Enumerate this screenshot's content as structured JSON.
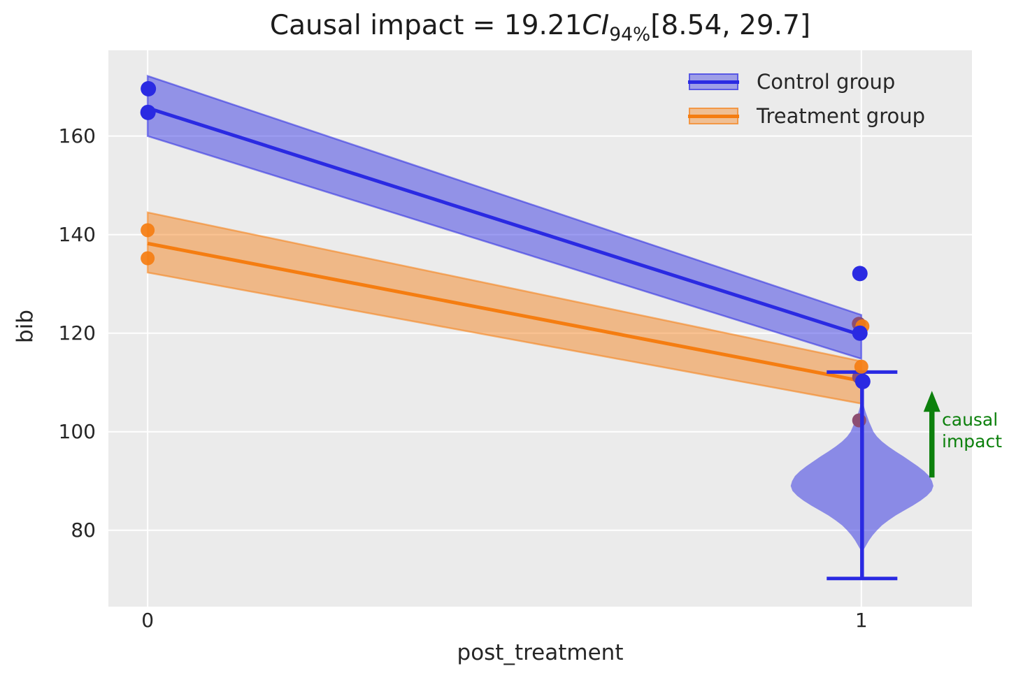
{
  "figure": {
    "title": {
      "prefix": "Causal impact = 19.21",
      "ci": "CI",
      "ci_sub": "94%",
      "suffix": "[8.54, 29.7]"
    },
    "xlabel": "post_treatment",
    "ylabel": "bib"
  },
  "legend": [
    {
      "label": "Control group",
      "color": "#2a2ae2"
    },
    {
      "label": "Treatment group",
      "color": "#f57d11"
    }
  ],
  "annotation": {
    "text": "causal\nimpact",
    "color": "#0c800c"
  },
  "colors": {
    "plot_bg": "#ebebeb",
    "grid": "#ffffff",
    "control": "#2a2ae2",
    "treatment": "#f57d11",
    "overlap_dot": "#8d4e72",
    "green": "#0c800c",
    "text": "#262626"
  },
  "chart_data": {
    "type": "line",
    "title": "Causal impact = 19.21 CI_94% [8.54, 29.7]",
    "causal_impact": {
      "estimate": 19.21,
      "ci_level": "94%",
      "ci_lower": 8.54,
      "ci_upper": 29.7
    },
    "xlabel": "post_treatment",
    "ylabel": "bib",
    "x": [
      0,
      1
    ],
    "xticks": [
      0,
      1
    ],
    "yticks": [
      80,
      100,
      120,
      140,
      160
    ],
    "axes": {
      "xlim": [
        -0.055,
        1.155
      ],
      "ylim": [
        64.5,
        177.4
      ],
      "grid": true,
      "legend_position": "upper right"
    },
    "series": [
      {
        "name": "Control group",
        "color": "#2a2ae2",
        "line": [
          [
            0,
            165.7
          ],
          [
            1,
            119.6
          ]
        ],
        "band_upper": [
          [
            0,
            172.2
          ],
          [
            1,
            123.7
          ]
        ],
        "band_lower": [
          [
            0,
            160.0
          ],
          [
            1,
            114.8
          ]
        ],
        "scatter": [
          [
            0.001,
            169.6
          ],
          [
            0.0005,
            164.8
          ],
          [
            0.998,
            132.1
          ],
          [
            0.998,
            120.0
          ],
          [
            1.002,
            110.2
          ]
        ]
      },
      {
        "name": "Treatment group",
        "color": "#f57d11",
        "line": [
          [
            0,
            138.2
          ],
          [
            1,
            110.3
          ]
        ],
        "band_upper": [
          [
            0,
            144.5
          ],
          [
            1,
            114.3
          ]
        ],
        "band_lower": [
          [
            0,
            132.3
          ],
          [
            1,
            105.7
          ]
        ],
        "scatter": [
          [
            0.0,
            140.9
          ],
          [
            0.0,
            135.2
          ],
          [
            1.0015,
            121.4
          ],
          [
            1.0,
            113.2
          ]
        ]
      }
    ],
    "overlap_points": {
      "color": "#8d4e72",
      "scatter": [
        [
          0.9965,
          121.9
        ],
        [
          0.997,
          111.1
        ],
        [
          0.997,
          102.3
        ]
      ]
    },
    "violin": {
      "x": 1.001,
      "color": "#2a2ae2",
      "whisker_low": 70.2,
      "whisker_high": 112.1,
      "cap_halfwidth": 0.0495,
      "profile": [
        [
          106.5,
          0.001
        ],
        [
          105,
          0.003
        ],
        [
          104,
          0.005
        ],
        [
          103,
          0.0075
        ],
        [
          102,
          0.01
        ],
        [
          101,
          0.013
        ],
        [
          100,
          0.016
        ],
        [
          99,
          0.021
        ],
        [
          98,
          0.028
        ],
        [
          97,
          0.037
        ],
        [
          96,
          0.047
        ],
        [
          95,
          0.058
        ],
        [
          94,
          0.068
        ],
        [
          93,
          0.078
        ],
        [
          92,
          0.087
        ],
        [
          91,
          0.094
        ],
        [
          90,
          0.098
        ],
        [
          89,
          0.1
        ],
        [
          88,
          0.0975
        ],
        [
          87,
          0.091
        ],
        [
          86,
          0.082
        ],
        [
          85,
          0.071
        ],
        [
          84,
          0.059
        ],
        [
          83,
          0.047
        ],
        [
          82,
          0.037
        ],
        [
          81,
          0.028
        ],
        [
          80,
          0.021
        ],
        [
          79,
          0.015
        ],
        [
          78,
          0.01
        ],
        [
          77,
          0.006
        ],
        [
          76.5,
          0.004
        ],
        [
          76,
          0.002
        ],
        [
          75.5,
          0.001
        ]
      ]
    },
    "arrow": {
      "x": 1.0989,
      "y_from": 90.7,
      "y_to": 108.3,
      "color": "#0c800c",
      "label": "causal impact"
    }
  }
}
